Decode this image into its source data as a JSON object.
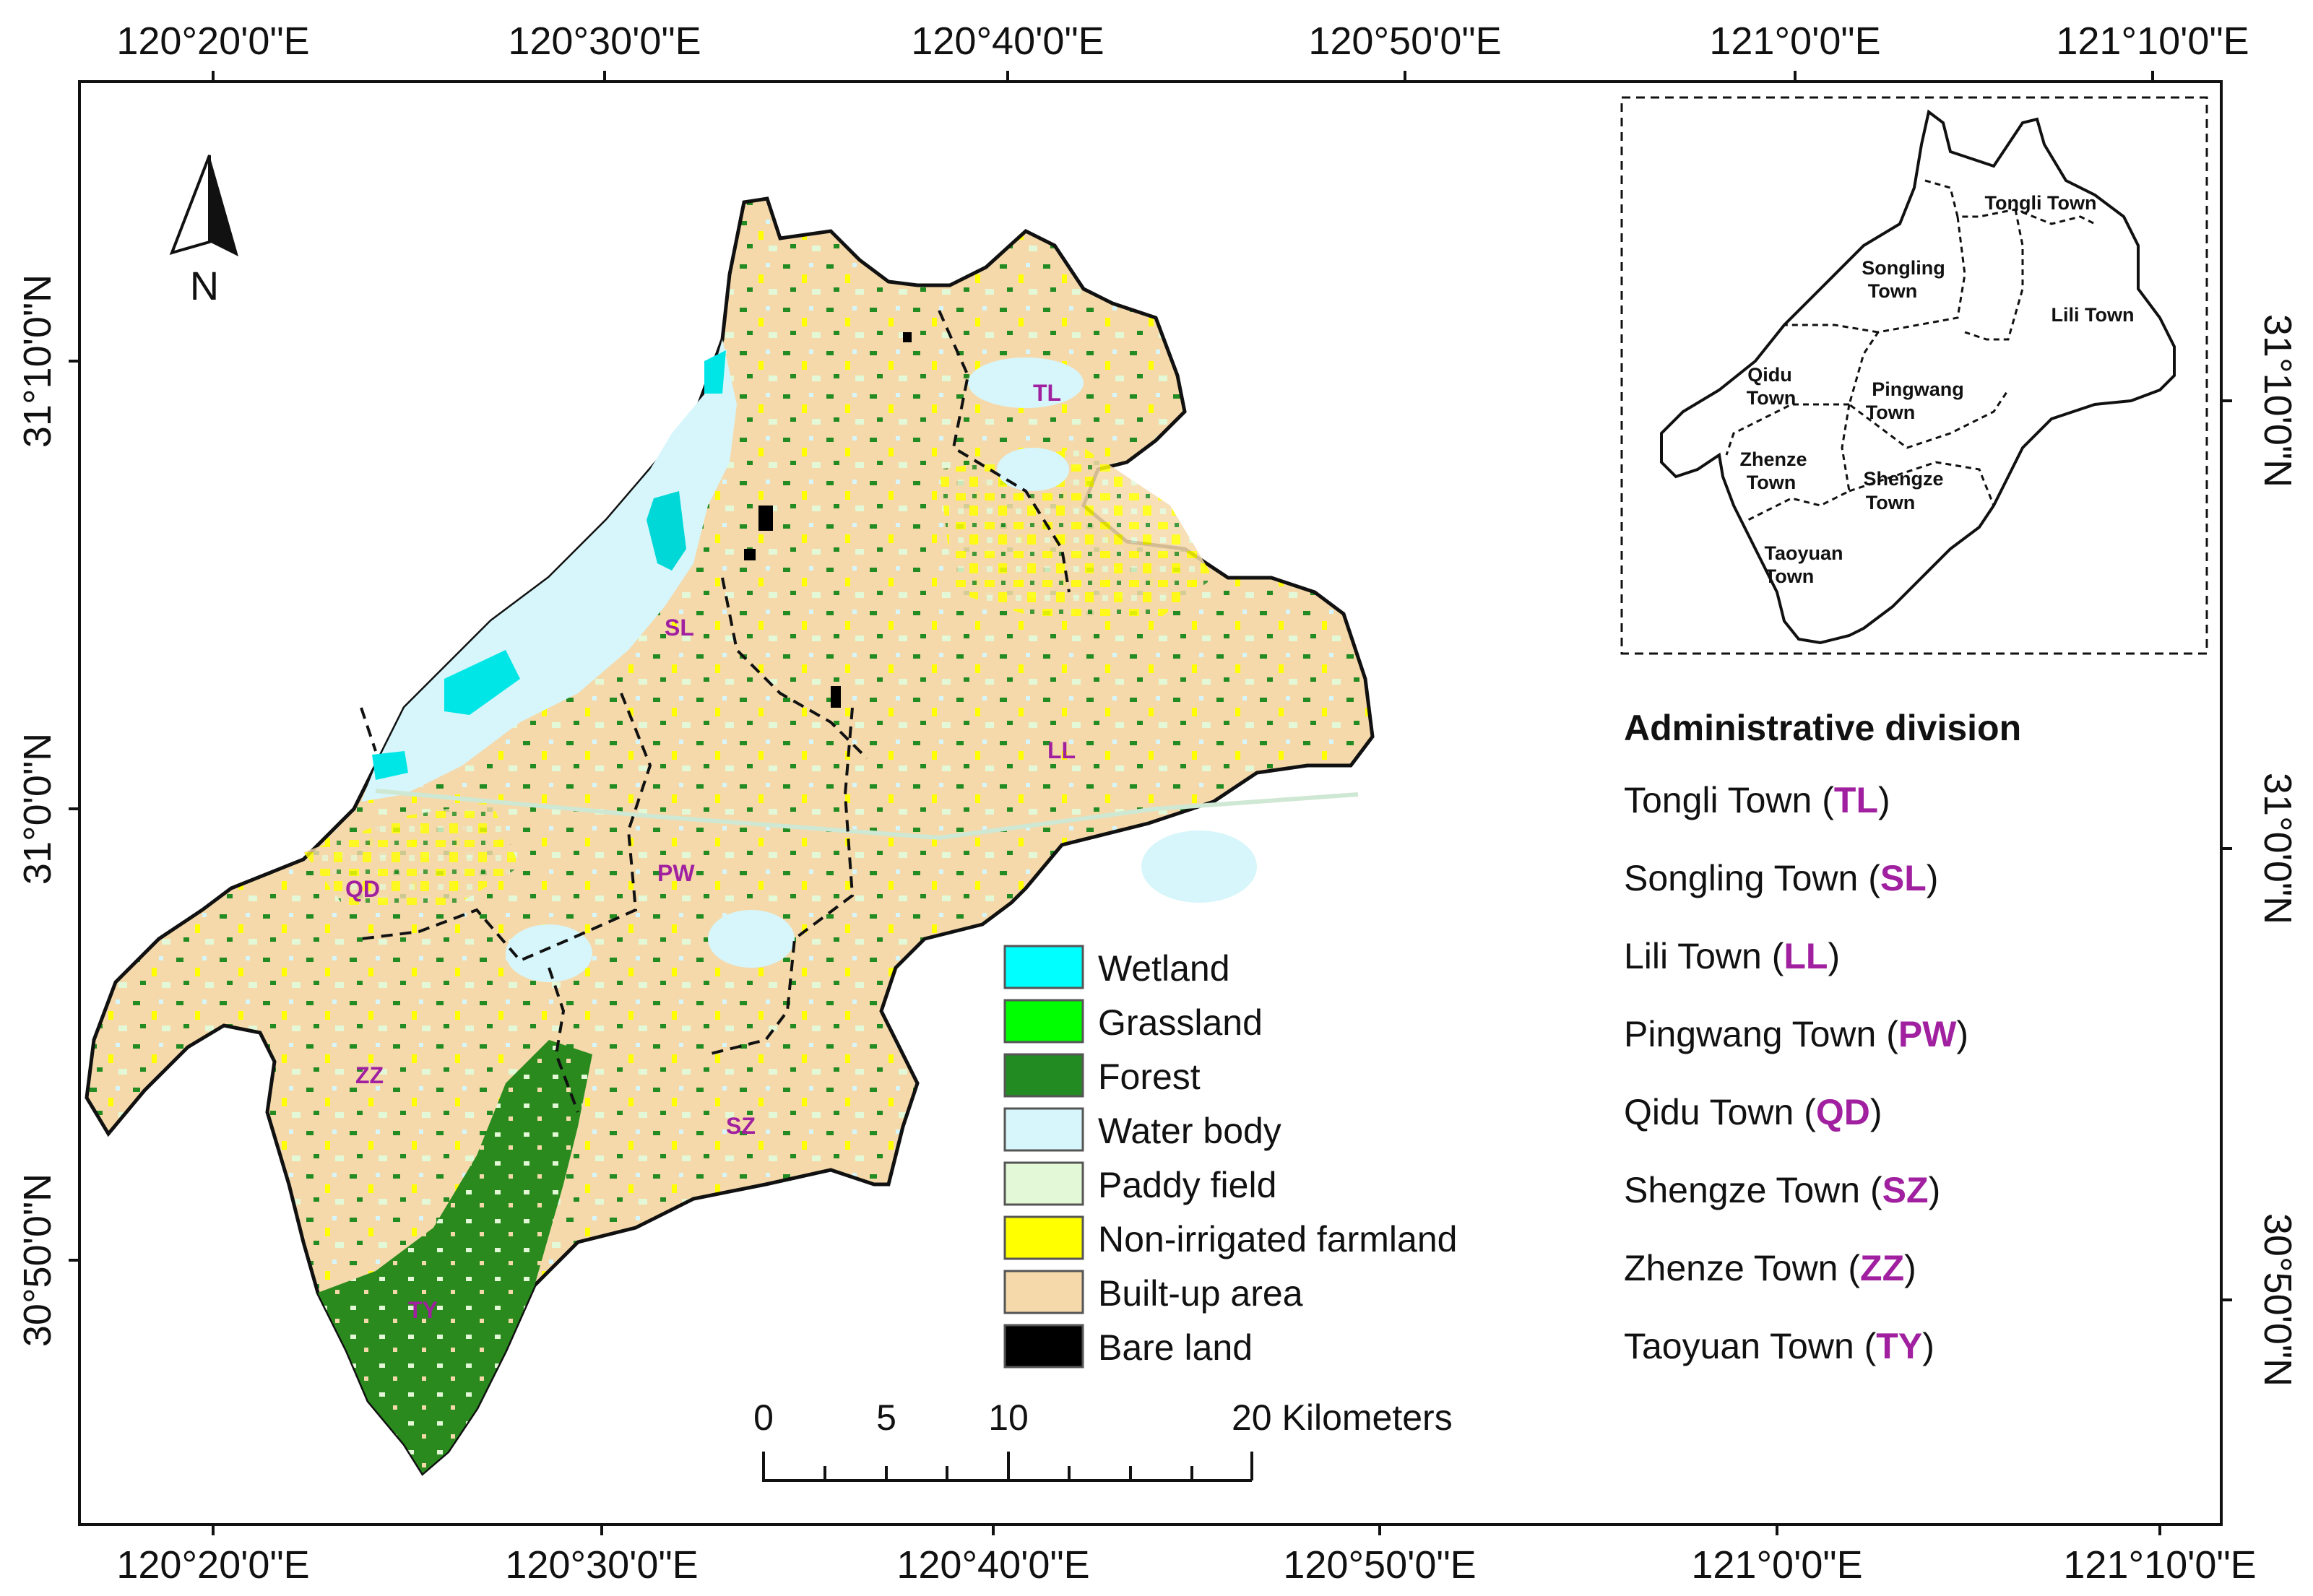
{
  "top_lon_labels": [
    "120°20'0\"E",
    "120°30'0\"E",
    "120°40'0\"E",
    "120°50'0\"E",
    "121°0'0\"E",
    "121°10'0\"E"
  ],
  "bottom_lon_labels": [
    "120°20'0\"E",
    "120°30'0\"E",
    "120°40'0\"E",
    "120°50'0\"E",
    "121°0'0\"E",
    "121°10'0\"E"
  ],
  "left_lat_labels": [
    "31°10'0\"N",
    "31°0'0\"N",
    "30°50'0\"N"
  ],
  "right_lat_labels": [
    "31°10'0\"N",
    "31°0'0\"N",
    "30°50'0\"N"
  ],
  "north_arrow": "N",
  "legend": [
    {
      "label": "Wetland",
      "color": "#00ffff"
    },
    {
      "label": "Grassland",
      "color": "#00ff00"
    },
    {
      "label": "Forest",
      "color": "#228b22"
    },
    {
      "label": "Water body",
      "color": "#d6f6fb"
    },
    {
      "label": "Paddy field",
      "color": "#e3f8d6"
    },
    {
      "label": "Non-irrigated farmland",
      "color": "#ffff00"
    },
    {
      "label": "Built-up area",
      "color": "#f5d9aa"
    },
    {
      "label": "Bare land",
      "color": "#000000"
    }
  ],
  "scale_bar": {
    "ticks": [
      "0",
      "5",
      "10",
      "20 Kilometers"
    ]
  },
  "map_labels": [
    "TL",
    "SL",
    "LL",
    "PW",
    "QD",
    "ZZ",
    "SZ",
    "TY"
  ],
  "inset_labels": {
    "tongli": "Tongli Town",
    "songling": [
      "Songling",
      "Town"
    ],
    "lili": "Lili Town",
    "qidu": [
      "Qidu",
      "Town"
    ],
    "pingwang": [
      "Pingwang",
      "Town"
    ],
    "zhenze": [
      "Zhenze",
      "Town"
    ],
    "shengze": [
      "Shengze",
      "Town"
    ],
    "taoyuan": [
      "Taoyuan",
      "Town"
    ]
  },
  "admin_title": "Administrative division",
  "admin_list": [
    {
      "name": "Tongli Town (",
      "abbr": "TL",
      "close": ")"
    },
    {
      "name": "Songling Town (",
      "abbr": "SL",
      "close": ")"
    },
    {
      "name": "Lili Town (",
      "abbr": "LL",
      "close": ")"
    },
    {
      "name": "Pingwang Town (",
      "abbr": "PW",
      "close": ")"
    },
    {
      "name": "Qidu Town (",
      "abbr": "QD",
      "close": ")"
    },
    {
      "name": "Shengze Town (",
      "abbr": "SZ",
      "close": ")"
    },
    {
      "name": "Zhenze Town (",
      "abbr": "ZZ",
      "close": ")"
    },
    {
      "name": "Taoyuan Town (",
      "abbr": "TY",
      "close": ")"
    }
  ]
}
